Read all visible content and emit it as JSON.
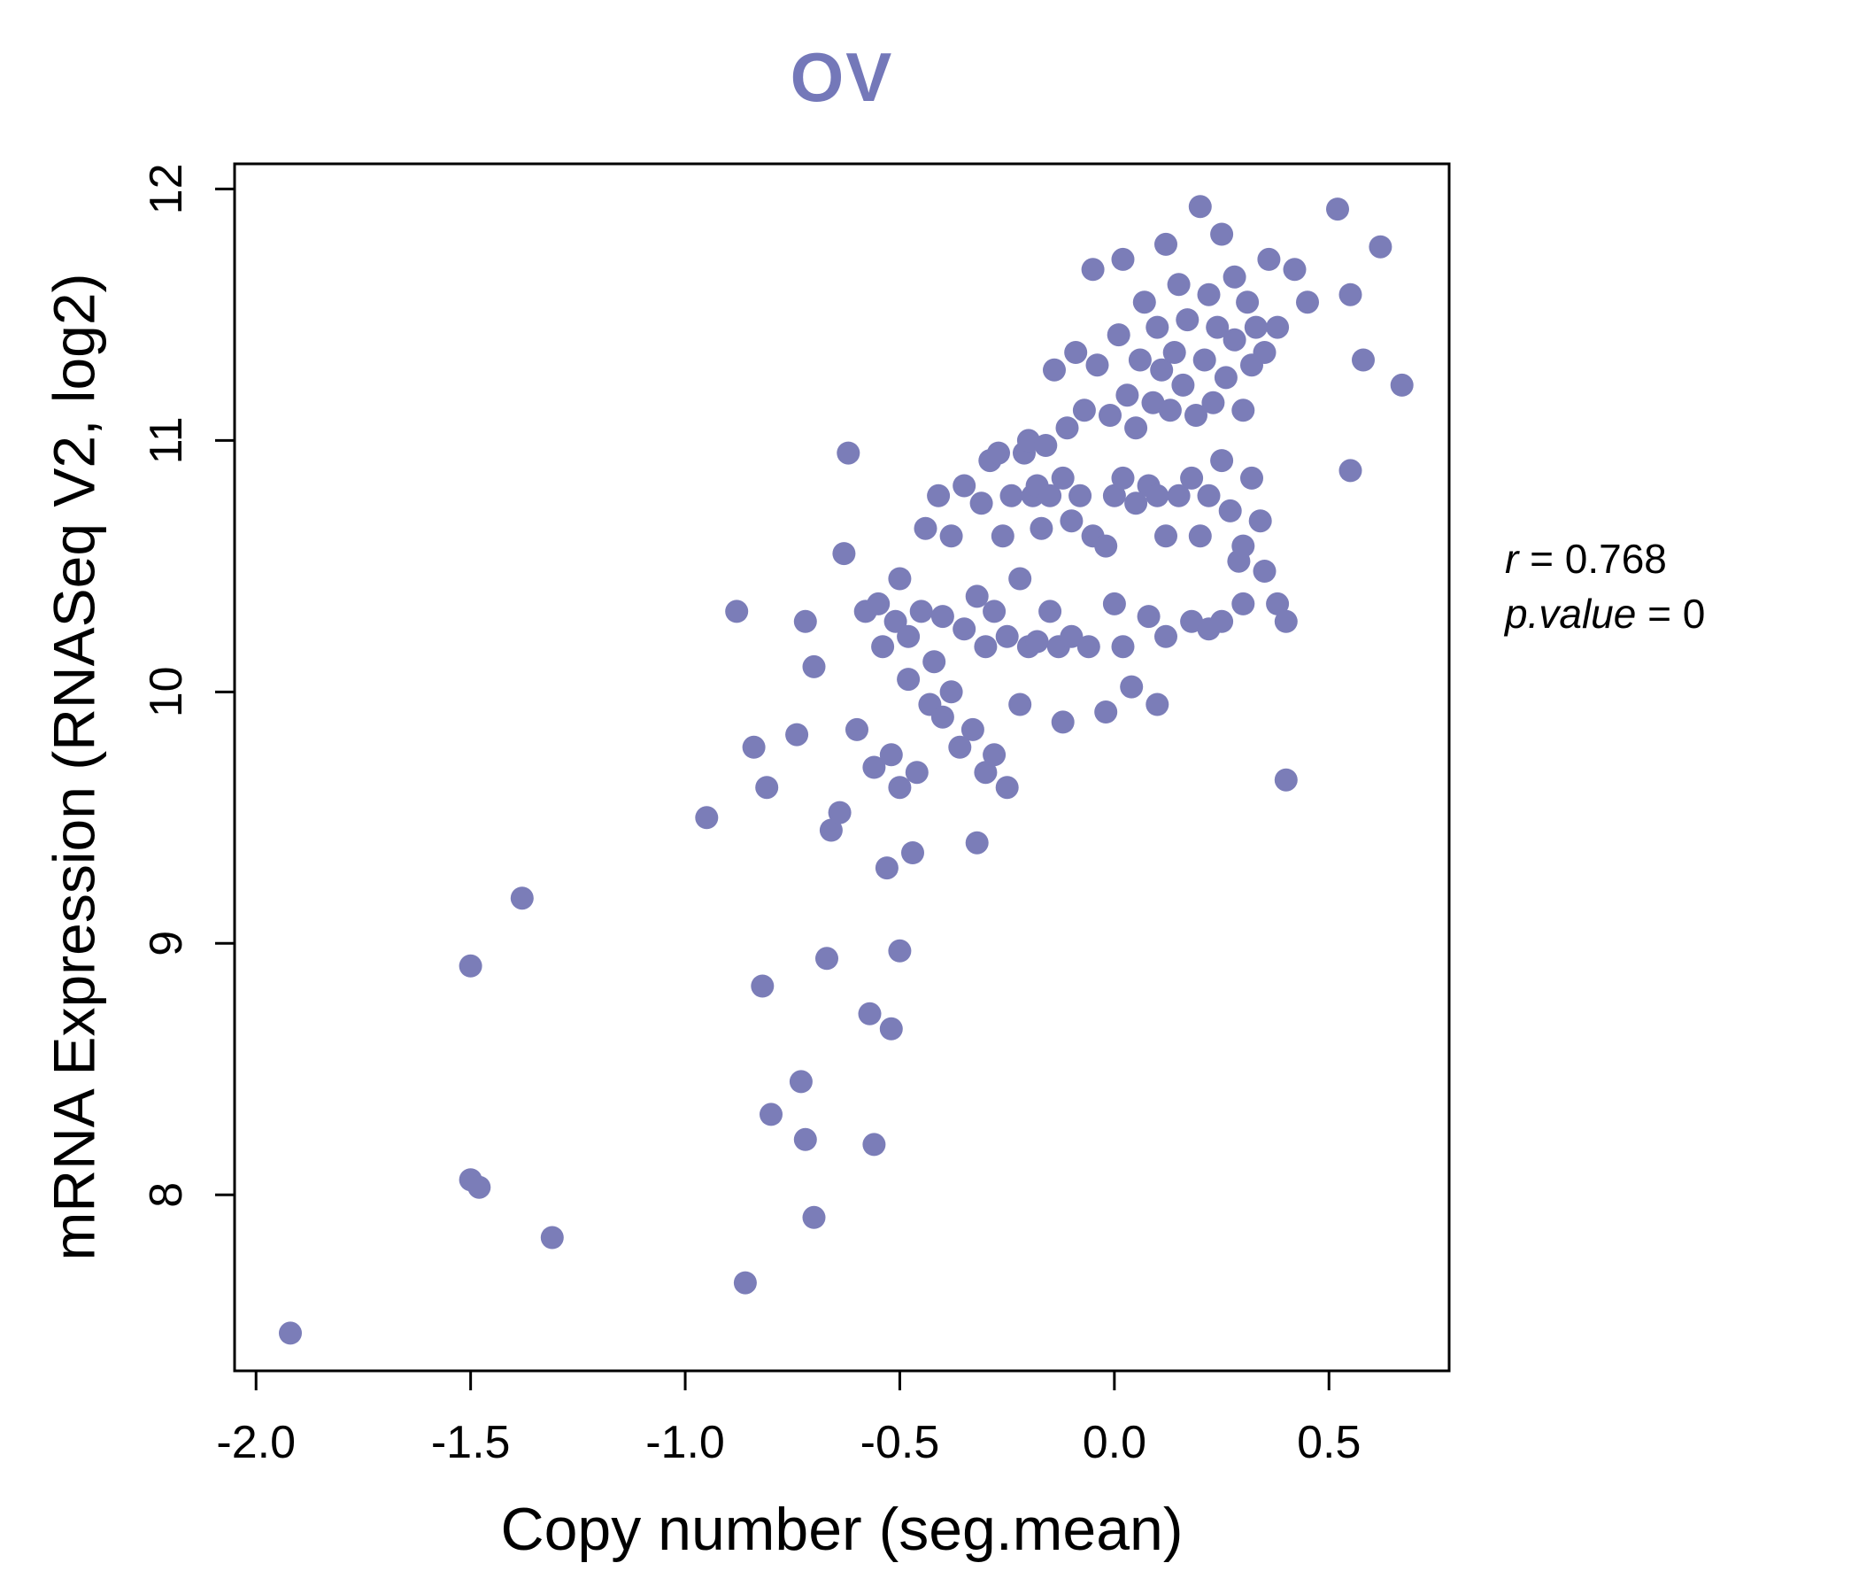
{
  "page": {
    "title": "OV"
  },
  "annotation": {
    "r_var": "r",
    "r_rest": " = 0.768",
    "p_var": "p.value",
    "p_rest": " = 0"
  },
  "chart_data": {
    "type": "scatter",
    "title": "OV",
    "xlabel": "Copy number (seg.mean)",
    "ylabel": "mRNA Expression (RNASeq V2, log2)",
    "xlim": [
      -2.05,
      0.78
    ],
    "ylim": [
      7.3,
      12.1
    ],
    "x_ticks": [
      -2.0,
      -1.5,
      -1.0,
      -0.5,
      0.0,
      0.5
    ],
    "x_tick_labels": [
      "-2.0",
      "-1.5",
      "-1.0",
      "-0.5",
      "0.0",
      "0.5"
    ],
    "y_ticks": [
      8,
      9,
      10,
      11,
      12
    ],
    "y_tick_labels": [
      "8",
      "9",
      "10",
      "11",
      "12"
    ],
    "grid": false,
    "legend": "none",
    "point_color": "#7b7db8",
    "title_color": "#7478b9",
    "axis_color": "#000000",
    "annotation_text": [
      "r = 0.768",
      "p.value = 0"
    ],
    "points": [
      [
        -1.92,
        7.45
      ],
      [
        -1.5,
        8.06
      ],
      [
        -1.48,
        8.03
      ],
      [
        -1.5,
        8.91
      ],
      [
        -1.38,
        9.18
      ],
      [
        -1.31,
        7.83
      ],
      [
        -0.95,
        9.5
      ],
      [
        -0.86,
        7.65
      ],
      [
        -0.82,
        8.83
      ],
      [
        -0.8,
        8.32
      ],
      [
        -0.73,
        8.45
      ],
      [
        -0.72,
        8.22
      ],
      [
        -0.7,
        7.91
      ],
      [
        -0.67,
        8.94
      ],
      [
        -0.57,
        8.72
      ],
      [
        -0.56,
        8.2
      ],
      [
        -0.52,
        8.66
      ],
      [
        -0.5,
        8.97
      ],
      [
        -0.53,
        9.3
      ],
      [
        -0.47,
        9.36
      ],
      [
        -0.32,
        9.4
      ],
      [
        -0.88,
        10.32
      ],
      [
        -0.84,
        9.78
      ],
      [
        -0.81,
        9.62
      ],
      [
        -0.74,
        9.83
      ],
      [
        -0.72,
        10.28
      ],
      [
        -0.7,
        10.1
      ],
      [
        -0.66,
        9.45
      ],
      [
        -0.64,
        9.52
      ],
      [
        -0.63,
        10.55
      ],
      [
        -0.62,
        10.95
      ],
      [
        -0.6,
        9.85
      ],
      [
        -0.58,
        10.32
      ],
      [
        -0.56,
        9.7
      ],
      [
        -0.55,
        10.35
      ],
      [
        -0.54,
        10.18
      ],
      [
        -0.52,
        9.75
      ],
      [
        -0.51,
        10.28
      ],
      [
        -0.5,
        9.62
      ],
      [
        -0.5,
        10.45
      ],
      [
        -0.48,
        10.05
      ],
      [
        -0.48,
        10.22
      ],
      [
        -0.46,
        9.68
      ],
      [
        -0.45,
        10.32
      ],
      [
        -0.44,
        10.65
      ],
      [
        -0.43,
        9.95
      ],
      [
        -0.42,
        10.12
      ],
      [
        -0.41,
        10.78
      ],
      [
        -0.4,
        9.9
      ],
      [
        -0.4,
        10.3
      ],
      [
        -0.38,
        10.0
      ],
      [
        -0.38,
        10.62
      ],
      [
        -0.36,
        9.78
      ],
      [
        -0.35,
        10.25
      ],
      [
        -0.35,
        10.82
      ],
      [
        -0.33,
        9.85
      ],
      [
        -0.32,
        10.38
      ],
      [
        -0.31,
        10.75
      ],
      [
        -0.3,
        9.68
      ],
      [
        -0.3,
        10.18
      ],
      [
        -0.29,
        10.92
      ],
      [
        -0.28,
        9.75
      ],
      [
        -0.28,
        10.32
      ],
      [
        -0.27,
        10.95
      ],
      [
        -0.26,
        10.62
      ],
      [
        -0.25,
        9.62
      ],
      [
        -0.25,
        10.22
      ],
      [
        -0.24,
        10.78
      ],
      [
        -0.22,
        9.95
      ],
      [
        -0.22,
        10.45
      ],
      [
        -0.21,
        10.95
      ],
      [
        -0.2,
        10.18
      ],
      [
        -0.2,
        11.0
      ],
      [
        -0.19,
        10.78
      ],
      [
        -0.18,
        10.2
      ],
      [
        -0.18,
        10.82
      ],
      [
        -0.17,
        10.65
      ],
      [
        -0.16,
        10.98
      ],
      [
        -0.15,
        10.32
      ],
      [
        -0.15,
        10.78
      ],
      [
        -0.14,
        11.28
      ],
      [
        -0.13,
        10.18
      ],
      [
        -0.12,
        9.88
      ],
      [
        -0.12,
        10.85
      ],
      [
        -0.11,
        11.05
      ],
      [
        -0.1,
        10.22
      ],
      [
        -0.1,
        10.68
      ],
      [
        -0.09,
        11.35
      ],
      [
        -0.08,
        10.78
      ],
      [
        -0.07,
        11.12
      ],
      [
        -0.06,
        10.18
      ],
      [
        -0.05,
        10.62
      ],
      [
        -0.05,
        11.68
      ],
      [
        -0.04,
        11.3
      ],
      [
        -0.02,
        9.92
      ],
      [
        -0.02,
        10.58
      ],
      [
        -0.01,
        11.1
      ],
      [
        0.0,
        10.35
      ],
      [
        0.0,
        10.78
      ],
      [
        0.01,
        11.42
      ],
      [
        0.02,
        10.18
      ],
      [
        0.02,
        10.85
      ],
      [
        0.02,
        11.72
      ],
      [
        0.03,
        11.18
      ],
      [
        0.04,
        10.02
      ],
      [
        0.05,
        10.75
      ],
      [
        0.05,
        11.05
      ],
      [
        0.06,
        11.32
      ],
      [
        0.07,
        11.55
      ],
      [
        0.08,
        10.3
      ],
      [
        0.08,
        10.82
      ],
      [
        0.09,
        11.15
      ],
      [
        0.1,
        9.95
      ],
      [
        0.1,
        10.78
      ],
      [
        0.1,
        11.45
      ],
      [
        0.11,
        11.28
      ],
      [
        0.12,
        10.22
      ],
      [
        0.12,
        10.62
      ],
      [
        0.12,
        11.78
      ],
      [
        0.13,
        11.12
      ],
      [
        0.14,
        11.35
      ],
      [
        0.15,
        10.78
      ],
      [
        0.15,
        11.62
      ],
      [
        0.16,
        11.22
      ],
      [
        0.17,
        11.48
      ],
      [
        0.18,
        10.28
      ],
      [
        0.18,
        10.85
      ],
      [
        0.19,
        11.1
      ],
      [
        0.2,
        10.62
      ],
      [
        0.2,
        11.93
      ],
      [
        0.21,
        11.32
      ],
      [
        0.22,
        10.25
      ],
      [
        0.22,
        10.78
      ],
      [
        0.22,
        11.58
      ],
      [
        0.23,
        11.15
      ],
      [
        0.24,
        11.45
      ],
      [
        0.25,
        10.28
      ],
      [
        0.25,
        10.92
      ],
      [
        0.25,
        11.82
      ],
      [
        0.26,
        11.25
      ],
      [
        0.27,
        10.72
      ],
      [
        0.28,
        11.4
      ],
      [
        0.28,
        11.65
      ],
      [
        0.29,
        10.52
      ],
      [
        0.3,
        10.35
      ],
      [
        0.3,
        10.58
      ],
      [
        0.3,
        11.12
      ],
      [
        0.31,
        11.55
      ],
      [
        0.32,
        10.85
      ],
      [
        0.32,
        11.3
      ],
      [
        0.33,
        11.45
      ],
      [
        0.34,
        10.68
      ],
      [
        0.35,
        10.48
      ],
      [
        0.35,
        11.35
      ],
      [
        0.36,
        11.72
      ],
      [
        0.38,
        10.35
      ],
      [
        0.38,
        11.45
      ],
      [
        0.4,
        9.65
      ],
      [
        0.4,
        10.28
      ],
      [
        0.42,
        11.68
      ],
      [
        0.45,
        11.55
      ],
      [
        0.52,
        11.92
      ],
      [
        0.55,
        10.88
      ],
      [
        0.55,
        11.58
      ],
      [
        0.58,
        11.32
      ],
      [
        0.62,
        11.77
      ],
      [
        0.67,
        11.22
      ]
    ]
  }
}
